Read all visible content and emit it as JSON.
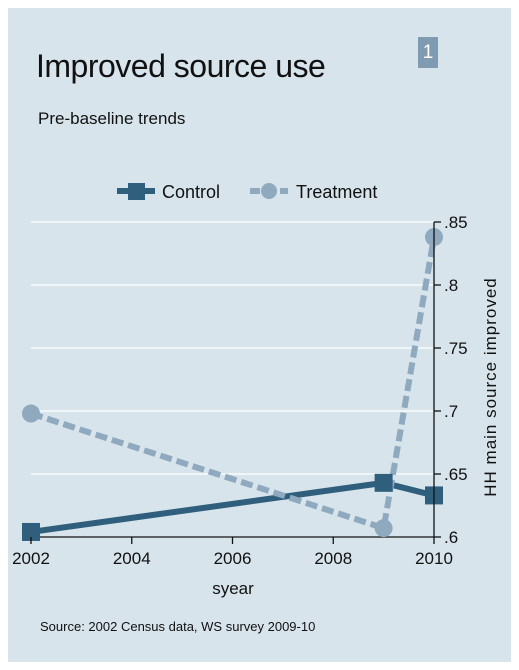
{
  "header": {
    "title": "Improved source use",
    "subtitle": "Pre-baseline trends",
    "badge": "1"
  },
  "footer": {
    "source": "Source: 2002 Census data, WS survey 2009-10"
  },
  "colors": {
    "background": "#d7e4ec",
    "control": "#2f5f7d",
    "treatment": "#8fa9bf",
    "grid": "#ffffff"
  },
  "chart_data": {
    "type": "line",
    "title": "Improved source use",
    "subtitle": "Pre-baseline trends",
    "xlabel": "syear",
    "ylabel": "HH main source improved",
    "xlim": [
      2002,
      2010
    ],
    "ylim": [
      0.6,
      0.85
    ],
    "xticks": [
      2002,
      2004,
      2006,
      2008,
      2010
    ],
    "xtick_labels": [
      "2002",
      "2004",
      "2006",
      "2008",
      "2010"
    ],
    "yticks": [
      0.6,
      0.65,
      0.7,
      0.75,
      0.8,
      0.85
    ],
    "ytick_labels": [
      ".6",
      ".65",
      ".7",
      ".75",
      ".8",
      ".85"
    ],
    "y_axis_side": "right",
    "grid": true,
    "legend_position": "top",
    "series": [
      {
        "name": "Control",
        "marker": "square",
        "line": "solid",
        "x": [
          2002,
          2009,
          2010
        ],
        "y": [
          0.604,
          0.643,
          0.633
        ]
      },
      {
        "name": "Treatment",
        "marker": "circle",
        "line": "dashed",
        "x": [
          2002,
          2009,
          2010
        ],
        "y": [
          0.698,
          0.607,
          0.838
        ]
      }
    ]
  }
}
